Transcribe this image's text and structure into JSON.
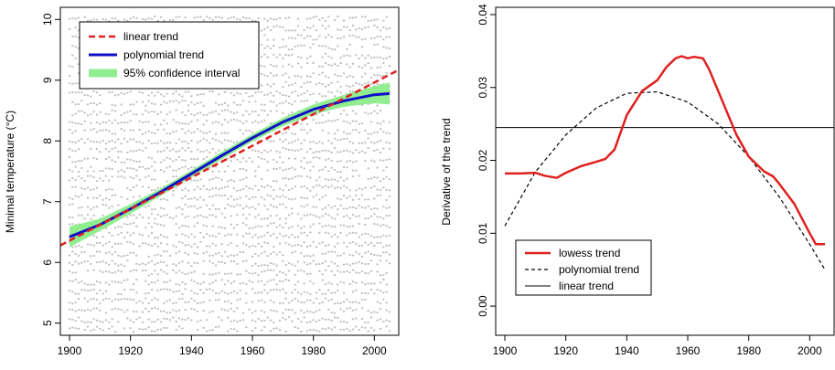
{
  "chart_data": [
    {
      "type": "scatter",
      "title": "",
      "xlabel": "",
      "ylabel": "Minimal temperature (°C)",
      "xlim": [
        1897,
        2008
      ],
      "ylim": [
        4.8,
        10.2
      ],
      "xticks": [
        1900,
        1920,
        1940,
        1960,
        1980,
        2000
      ],
      "yticks": [
        5,
        6,
        7,
        8,
        9,
        10
      ],
      "grid": false,
      "legend_position": "top-left",
      "legend": [
        "linear trend",
        "polynomial trend",
        "95% confidence interval"
      ],
      "colors": {
        "points": "#bdbdbd",
        "linear": "#e02020",
        "polynomial": "#1010c8",
        "ci": "#90ee90"
      },
      "points_note_years": [
        1900,
        2005
      ],
      "series": [
        {
          "name": "linear trend",
          "style": "dashed",
          "x": [
            1897,
            2008
          ],
          "y": [
            6.28,
            9.17
          ]
        },
        {
          "name": "polynomial trend",
          "style": "solid",
          "x": [
            1900,
            1910,
            1920,
            1930,
            1940,
            1950,
            1960,
            1970,
            1980,
            1990,
            2000,
            2005
          ],
          "y": [
            6.42,
            6.62,
            6.88,
            7.16,
            7.46,
            7.76,
            8.05,
            8.31,
            8.52,
            8.66,
            8.76,
            8.78
          ]
        },
        {
          "name": "95% confidence interval",
          "style": "band",
          "x": [
            1900,
            1910,
            1920,
            1930,
            1940,
            1950,
            1960,
            1970,
            1980,
            1990,
            2000,
            2005
          ],
          "lower": [
            6.25,
            6.52,
            6.8,
            7.1,
            7.4,
            7.7,
            7.99,
            8.24,
            8.44,
            8.56,
            8.62,
            8.6
          ],
          "upper": [
            6.59,
            6.72,
            6.96,
            7.22,
            7.52,
            7.82,
            8.11,
            8.38,
            8.6,
            8.76,
            8.9,
            8.96
          ]
        }
      ]
    },
    {
      "type": "line",
      "title": "",
      "xlabel": "",
      "ylabel": "Derivative of the trend",
      "xlim": [
        1897,
        2008
      ],
      "ylim": [
        -0.004,
        0.041
      ],
      "xticks": [
        1900,
        1920,
        1940,
        1960,
        1980,
        2000
      ],
      "yticks": [
        0.0,
        0.01,
        0.02,
        0.03,
        0.04
      ],
      "ytick_labels": [
        "0.00",
        "0.01",
        "0.02",
        "0.03",
        "0.04"
      ],
      "grid": false,
      "legend_position": "bottom-left",
      "legend": [
        "lowess trend",
        "polynomial trend",
        "linear trend"
      ],
      "colors": {
        "lowess": "#e02020",
        "polynomial": "#000000",
        "linear": "#000000"
      },
      "series": [
        {
          "name": "lowess trend",
          "style": "solid",
          "x": [
            1900,
            1905,
            1910,
            1913,
            1917,
            1920,
            1925,
            1930,
            1933,
            1936,
            1940,
            1945,
            1950,
            1953,
            1956,
            1958,
            1960,
            1962,
            1965,
            1967,
            1970,
            1973,
            1976,
            1980,
            1985,
            1988,
            1990,
            1995,
            2000,
            2002,
            2005
          ],
          "y": [
            0.0182,
            0.0182,
            0.0183,
            0.0179,
            0.0176,
            0.0183,
            0.0192,
            0.0198,
            0.0202,
            0.0215,
            0.0262,
            0.0295,
            0.031,
            0.0328,
            0.034,
            0.0343,
            0.034,
            0.0342,
            0.034,
            0.0325,
            0.0295,
            0.0265,
            0.0235,
            0.0205,
            0.0185,
            0.0178,
            0.0168,
            0.014,
            0.01,
            0.0085,
            0.0085
          ]
        },
        {
          "name": "polynomial trend",
          "style": "dashed",
          "x": [
            1900,
            1910,
            1920,
            1930,
            1940,
            1950,
            1960,
            1970,
            1980,
            1990,
            2000,
            2005
          ],
          "y": [
            0.011,
            0.0184,
            0.0235,
            0.0272,
            0.0292,
            0.0294,
            0.028,
            0.025,
            0.0205,
            0.015,
            0.0085,
            0.005
          ]
        },
        {
          "name": "linear trend",
          "style": "solid",
          "x": [
            1897,
            2008
          ],
          "y": [
            0.0245,
            0.0245
          ]
        }
      ]
    }
  ]
}
